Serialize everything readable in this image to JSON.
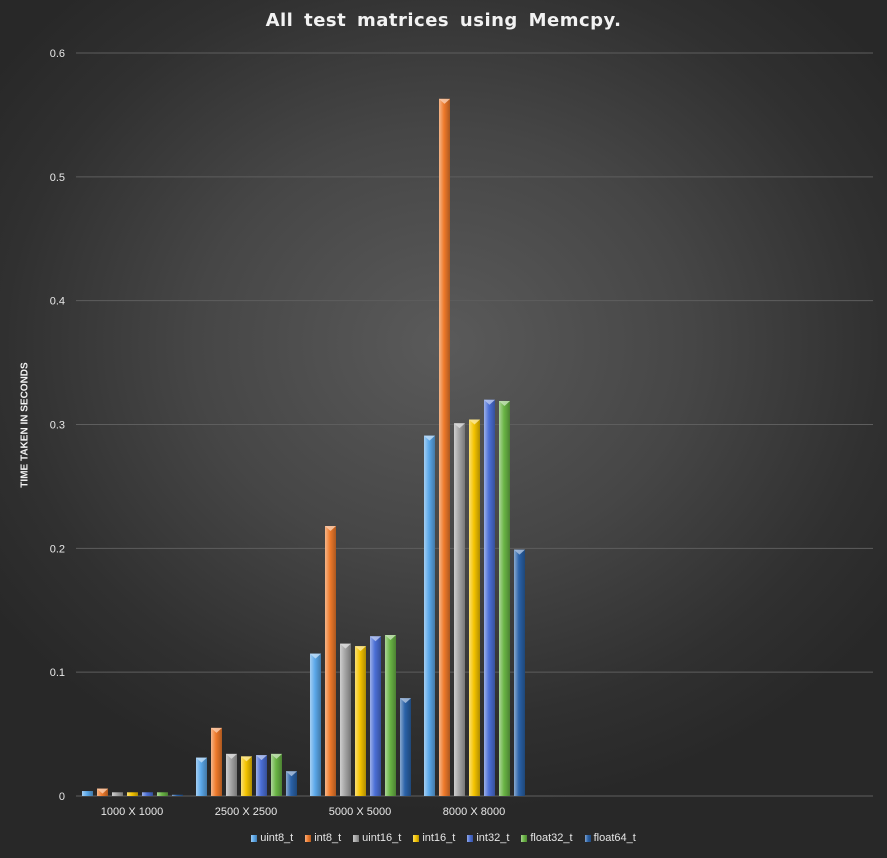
{
  "chart_data": {
    "type": "bar",
    "title": "All test matrices using Memcpy.",
    "xlabel": "",
    "ylabel": "TIME TAKEN IN SECONDS",
    "categories": [
      "1000 X 1000",
      "2500 X 2500",
      "5000 X 5000",
      "8000 X 8000"
    ],
    "ylim": [
      0,
      0.6
    ],
    "yticks": [
      "0",
      "0.1",
      "0.2",
      "0.3",
      "0.4",
      "0.5",
      "0.6"
    ],
    "grid": true,
    "legend_position": "bottom",
    "series": [
      {
        "name": "uint8_t",
        "color": "#5ba8ea",
        "values": [
          0.004,
          0.031,
          0.115,
          0.291
        ]
      },
      {
        "name": "int8_t",
        "color": "#ef7a2b",
        "values": [
          0.006,
          0.055,
          0.218,
          0.563
        ]
      },
      {
        "name": "uint16_t",
        "color": "#a5a5a5",
        "values": [
          0.003,
          0.034,
          0.123,
          0.301
        ]
      },
      {
        "name": "int16_t",
        "color": "#f5c400",
        "values": [
          0.003,
          0.032,
          0.121,
          0.304
        ]
      },
      {
        "name": "int32_t",
        "color": "#4b6fd6",
        "values": [
          0.003,
          0.033,
          0.129,
          0.32
        ]
      },
      {
        "name": "float32_t",
        "color": "#6ab545",
        "values": [
          0.003,
          0.034,
          0.13,
          0.319
        ]
      },
      {
        "name": "float64_t",
        "color": "#2a62a8",
        "values": [
          0.001,
          0.02,
          0.079,
          0.199
        ]
      }
    ]
  }
}
